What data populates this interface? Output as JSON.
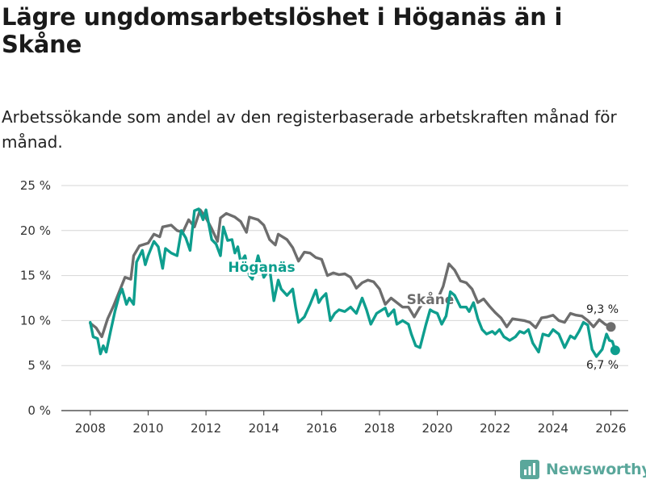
{
  "chart_data": {
    "type": "line",
    "title": "Lägre ungdomsarbetslöshet i Höganäs än i Skåne",
    "subtitle": "Arbetssökande som andel av den registerbaserade arbetskraften månad för månad.",
    "xlabel": "",
    "ylabel": "",
    "xlim": [
      2007.0,
      2026.6
    ],
    "ylim": [
      0,
      25
    ],
    "x_ticks": [
      2008,
      2010,
      2012,
      2014,
      2016,
      2018,
      2020,
      2022,
      2024,
      2026
    ],
    "y_ticks": [
      0,
      5,
      10,
      15,
      20,
      25
    ],
    "y_tick_labels": [
      "0 %",
      "5 %",
      "10 %",
      "15 %",
      "20 %",
      "25 %"
    ],
    "grid": "horizontal",
    "series": [
      {
        "name": "Skåne",
        "label": "Skåne",
        "color": "#6d6d6d",
        "end_label": "9,3 %",
        "points": [
          [
            2008.0,
            9.7
          ],
          [
            2008.2,
            9.2
          ],
          [
            2008.4,
            8.2
          ],
          [
            2008.6,
            10.2
          ],
          [
            2008.8,
            11.6
          ],
          [
            2009.0,
            13.2
          ],
          [
            2009.2,
            14.8
          ],
          [
            2009.4,
            14.6
          ],
          [
            2009.5,
            17.2
          ],
          [
            2009.7,
            18.3
          ],
          [
            2010.0,
            18.6
          ],
          [
            2010.2,
            19.6
          ],
          [
            2010.4,
            19.3
          ],
          [
            2010.5,
            20.4
          ],
          [
            2010.8,
            20.6
          ],
          [
            2011.0,
            20.0
          ],
          [
            2011.2,
            19.8
          ],
          [
            2011.4,
            21.2
          ],
          [
            2011.6,
            20.4
          ],
          [
            2011.8,
            22.3
          ],
          [
            2012.0,
            21.4
          ],
          [
            2012.2,
            20.2
          ],
          [
            2012.4,
            18.8
          ],
          [
            2012.5,
            21.4
          ],
          [
            2012.7,
            21.9
          ],
          [
            2013.0,
            21.5
          ],
          [
            2013.2,
            21.0
          ],
          [
            2013.4,
            19.8
          ],
          [
            2013.5,
            21.5
          ],
          [
            2013.8,
            21.2
          ],
          [
            2014.0,
            20.6
          ],
          [
            2014.2,
            19.0
          ],
          [
            2014.4,
            18.4
          ],
          [
            2014.5,
            19.6
          ],
          [
            2014.8,
            19.0
          ],
          [
            2015.0,
            18.1
          ],
          [
            2015.2,
            16.6
          ],
          [
            2015.4,
            17.6
          ],
          [
            2015.6,
            17.5
          ],
          [
            2015.8,
            17.0
          ],
          [
            2016.0,
            16.8
          ],
          [
            2016.2,
            15.0
          ],
          [
            2016.4,
            15.3
          ],
          [
            2016.6,
            15.1
          ],
          [
            2016.8,
            15.2
          ],
          [
            2017.0,
            14.8
          ],
          [
            2017.2,
            13.6
          ],
          [
            2017.4,
            14.2
          ],
          [
            2017.6,
            14.5
          ],
          [
            2017.8,
            14.3
          ],
          [
            2018.0,
            13.5
          ],
          [
            2018.2,
            11.8
          ],
          [
            2018.4,
            12.5
          ],
          [
            2018.6,
            12.0
          ],
          [
            2018.8,
            11.5
          ],
          [
            2019.0,
            11.5
          ],
          [
            2019.2,
            10.4
          ],
          [
            2019.4,
            11.5
          ],
          [
            2019.6,
            12.3
          ],
          [
            2019.8,
            12.0
          ],
          [
            2020.0,
            12.3
          ],
          [
            2020.2,
            13.8
          ],
          [
            2020.4,
            16.3
          ],
          [
            2020.6,
            15.6
          ],
          [
            2020.8,
            14.4
          ],
          [
            2021.0,
            14.2
          ],
          [
            2021.2,
            13.5
          ],
          [
            2021.4,
            12.0
          ],
          [
            2021.6,
            12.4
          ],
          [
            2021.8,
            11.6
          ],
          [
            2022.0,
            10.9
          ],
          [
            2022.2,
            10.3
          ],
          [
            2022.4,
            9.3
          ],
          [
            2022.6,
            10.2
          ],
          [
            2022.8,
            10.1
          ],
          [
            2023.0,
            10.0
          ],
          [
            2023.2,
            9.8
          ],
          [
            2023.4,
            9.2
          ],
          [
            2023.6,
            10.3
          ],
          [
            2023.8,
            10.4
          ],
          [
            2024.0,
            10.6
          ],
          [
            2024.2,
            10.0
          ],
          [
            2024.4,
            9.8
          ],
          [
            2024.6,
            10.8
          ],
          [
            2024.8,
            10.6
          ],
          [
            2025.0,
            10.5
          ],
          [
            2025.2,
            10.0
          ],
          [
            2025.4,
            9.3
          ],
          [
            2025.6,
            10.1
          ],
          [
            2025.8,
            9.6
          ],
          [
            2026.0,
            9.3
          ]
        ]
      },
      {
        "name": "Höganäs",
        "label": "Höganäs",
        "color": "#0e9e8e",
        "end_label": "6,7 %",
        "points": [
          [
            2008.0,
            9.8
          ],
          [
            2008.1,
            8.2
          ],
          [
            2008.25,
            8.0
          ],
          [
            2008.35,
            6.3
          ],
          [
            2008.45,
            7.2
          ],
          [
            2008.55,
            6.5
          ],
          [
            2008.7,
            8.8
          ],
          [
            2008.85,
            11.0
          ],
          [
            2009.0,
            12.8
          ],
          [
            2009.1,
            13.5
          ],
          [
            2009.25,
            11.8
          ],
          [
            2009.35,
            12.5
          ],
          [
            2009.5,
            11.8
          ],
          [
            2009.6,
            16.5
          ],
          [
            2009.8,
            17.8
          ],
          [
            2009.9,
            16.2
          ],
          [
            2010.0,
            17.2
          ],
          [
            2010.2,
            18.8
          ],
          [
            2010.35,
            18.2
          ],
          [
            2010.5,
            15.8
          ],
          [
            2010.6,
            18.0
          ],
          [
            2010.8,
            17.5
          ],
          [
            2011.0,
            17.2
          ],
          [
            2011.15,
            20.0
          ],
          [
            2011.3,
            19.2
          ],
          [
            2011.45,
            17.8
          ],
          [
            2011.6,
            22.2
          ],
          [
            2011.75,
            22.4
          ],
          [
            2011.9,
            21.2
          ],
          [
            2012.0,
            22.3
          ],
          [
            2012.2,
            19.0
          ],
          [
            2012.35,
            18.5
          ],
          [
            2012.5,
            17.2
          ],
          [
            2012.6,
            20.4
          ],
          [
            2012.75,
            18.9
          ],
          [
            2012.9,
            19.0
          ],
          [
            2013.0,
            17.5
          ],
          [
            2013.1,
            18.2
          ],
          [
            2013.2,
            16.5
          ],
          [
            2013.35,
            17.2
          ],
          [
            2013.5,
            15.0
          ],
          [
            2013.6,
            14.6
          ],
          [
            2013.8,
            17.2
          ],
          [
            2013.9,
            16.0
          ],
          [
            2014.0,
            14.8
          ],
          [
            2014.2,
            15.8
          ],
          [
            2014.35,
            12.2
          ],
          [
            2014.5,
            14.5
          ],
          [
            2014.6,
            13.5
          ],
          [
            2014.8,
            12.8
          ],
          [
            2015.0,
            13.5
          ],
          [
            2015.1,
            11.5
          ],
          [
            2015.2,
            9.8
          ],
          [
            2015.4,
            10.4
          ],
          [
            2015.6,
            11.8
          ],
          [
            2015.8,
            13.4
          ],
          [
            2015.9,
            12.0
          ],
          [
            2016.0,
            12.5
          ],
          [
            2016.15,
            13.0
          ],
          [
            2016.3,
            10.0
          ],
          [
            2016.45,
            10.8
          ],
          [
            2016.6,
            11.2
          ],
          [
            2016.8,
            11.0
          ],
          [
            2017.0,
            11.5
          ],
          [
            2017.2,
            10.8
          ],
          [
            2017.4,
            12.5
          ],
          [
            2017.55,
            11.2
          ],
          [
            2017.7,
            9.6
          ],
          [
            2017.9,
            10.8
          ],
          [
            2018.0,
            11.0
          ],
          [
            2018.2,
            11.4
          ],
          [
            2018.3,
            10.5
          ],
          [
            2018.5,
            11.2
          ],
          [
            2018.6,
            9.6
          ],
          [
            2018.8,
            10.0
          ],
          [
            2019.0,
            9.6
          ],
          [
            2019.1,
            8.5
          ],
          [
            2019.25,
            7.2
          ],
          [
            2019.4,
            7.0
          ],
          [
            2019.6,
            9.5
          ],
          [
            2019.75,
            11.2
          ],
          [
            2019.85,
            11.0
          ],
          [
            2020.0,
            10.8
          ],
          [
            2020.15,
            9.6
          ],
          [
            2020.3,
            10.5
          ],
          [
            2020.45,
            13.2
          ],
          [
            2020.6,
            12.8
          ],
          [
            2020.8,
            11.5
          ],
          [
            2021.0,
            11.5
          ],
          [
            2021.1,
            11.0
          ],
          [
            2021.25,
            12.0
          ],
          [
            2021.4,
            10.2
          ],
          [
            2021.55,
            9.0
          ],
          [
            2021.7,
            8.5
          ],
          [
            2021.9,
            8.8
          ],
          [
            2022.0,
            8.5
          ],
          [
            2022.15,
            9.0
          ],
          [
            2022.3,
            8.2
          ],
          [
            2022.5,
            7.8
          ],
          [
            2022.7,
            8.2
          ],
          [
            2022.85,
            8.8
          ],
          [
            2023.0,
            8.6
          ],
          [
            2023.15,
            9.0
          ],
          [
            2023.3,
            7.5
          ],
          [
            2023.5,
            6.5
          ],
          [
            2023.65,
            8.5
          ],
          [
            2023.85,
            8.3
          ],
          [
            2024.0,
            9.0
          ],
          [
            2024.2,
            8.5
          ],
          [
            2024.4,
            7.0
          ],
          [
            2024.6,
            8.3
          ],
          [
            2024.75,
            8.0
          ],
          [
            2024.9,
            8.8
          ],
          [
            2025.05,
            9.8
          ],
          [
            2025.2,
            9.5
          ],
          [
            2025.35,
            6.8
          ],
          [
            2025.5,
            6.0
          ],
          [
            2025.7,
            6.8
          ],
          [
            2025.85,
            8.5
          ],
          [
            2025.95,
            7.8
          ],
          [
            2026.05,
            7.7
          ],
          [
            2026.15,
            6.7
          ]
        ]
      }
    ]
  },
  "logo": {
    "icon": "newsworthy-logo-icon",
    "text": "Newsworthy",
    "color": "#5aa79b"
  }
}
